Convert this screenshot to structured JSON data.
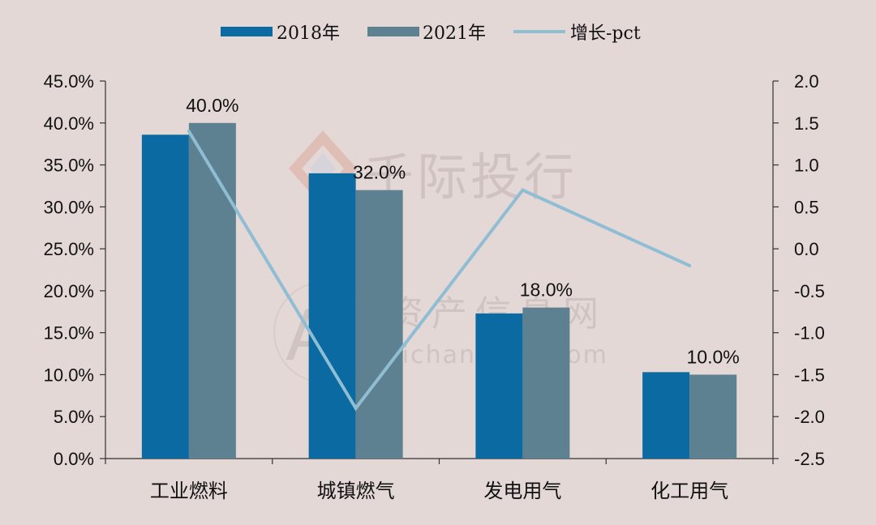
{
  "legend": [
    "2018年",
    "2021年",
    "增长-pct"
  ],
  "watermark": {
    "brand": "千际投行",
    "site_cn": "资产信息网",
    "site_url": "zichanxinxi.com",
    "logo_text": "AI"
  },
  "colors": {
    "s2018": "#0a6aa1",
    "s2021": "#5d8190",
    "growth": "#8fbdd3",
    "axis": "#333333"
  },
  "chart_data": {
    "type": "bar",
    "categories": [
      "工业燃料",
      "城镇燃气",
      "发电用气",
      "化工用气"
    ],
    "series": [
      {
        "name": "2018年",
        "type": "bar",
        "axis": "left",
        "values": [
          38.6,
          34.0,
          17.3,
          10.3
        ]
      },
      {
        "name": "2021年",
        "type": "bar",
        "axis": "left",
        "values": [
          40.0,
          32.0,
          18.0,
          10.0
        ]
      },
      {
        "name": "增长-pct",
        "type": "line",
        "axis": "right",
        "values": [
          1.4,
          -1.9,
          0.7,
          -0.2
        ]
      }
    ],
    "data_labels": [
      "40.0%",
      "32.0%",
      "18.0%",
      "10.0%"
    ],
    "y_left": {
      "min": 0,
      "max": 45,
      "ticks": [
        "0.0%",
        "5.0%",
        "10.0%",
        "15.0%",
        "20.0%",
        "25.0%",
        "30.0%",
        "35.0%",
        "40.0%",
        "45.0%"
      ]
    },
    "y_right": {
      "min": -2.5,
      "max": 2.0,
      "ticks": [
        "2.0",
        "1.5",
        "1.0",
        "0.5",
        "0.0",
        "-0.5",
        "-1.0",
        "-1.5",
        "-2.0",
        "-2.5"
      ]
    },
    "legend_position": "top",
    "grid": false
  }
}
